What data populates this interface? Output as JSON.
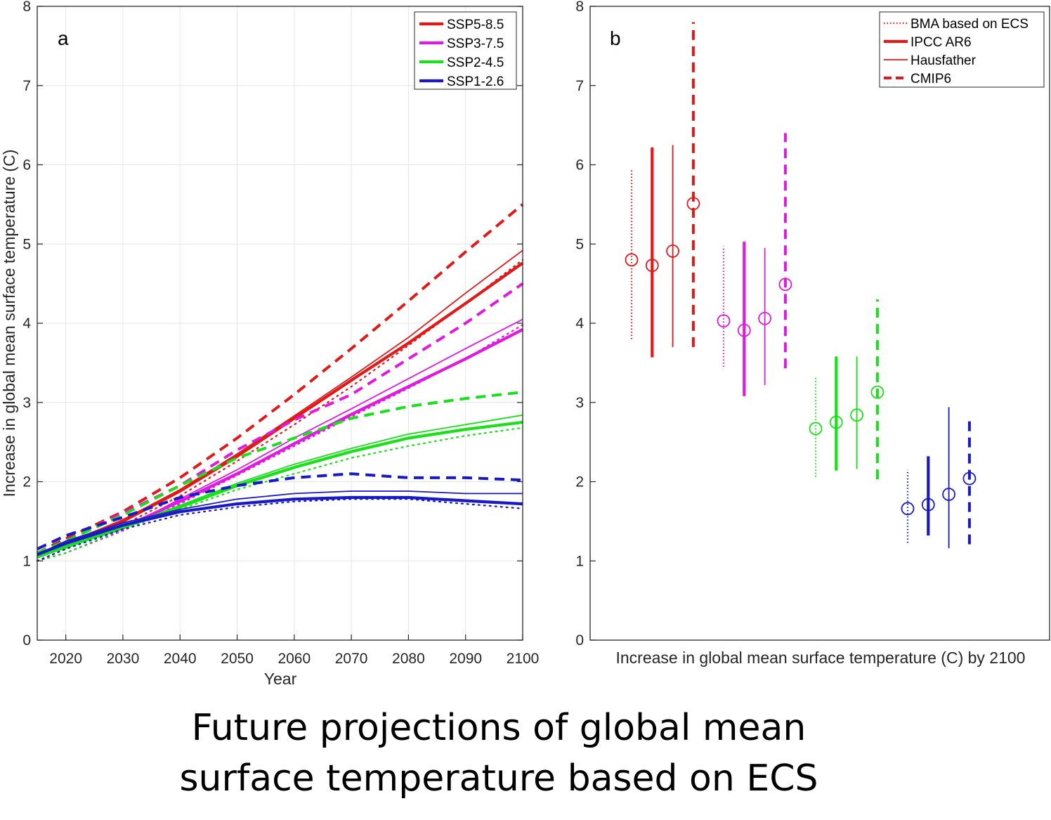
{
  "caption": {
    "line1": "Future projections of global mean",
    "line2": "surface temperature based on ECS"
  },
  "colors": {
    "SSP5-8.5": "#e01919",
    "SSP3-7.5": "#e019e0",
    "SSP2-4.5": "#19e019",
    "SSP1-2.6": "#1919c8"
  },
  "chart_data": [
    {
      "panel": "a",
      "type": "line",
      "xlabel": "Year",
      "ylabel": "Increase in global mean surface temperature (C)",
      "xlim": [
        2015,
        2100
      ],
      "ylim": [
        0,
        8
      ],
      "xticks": [
        2020,
        2030,
        2040,
        2050,
        2060,
        2070,
        2080,
        2090,
        2100
      ],
      "yticks": [
        0,
        1,
        2,
        3,
        4,
        5,
        6,
        7,
        8
      ],
      "grid": true,
      "legend_position": "top-right",
      "legend": [
        "SSP5-8.5",
        "SSP3-7.5",
        "SSP2-4.5",
        "SSP1-2.6"
      ],
      "line_styles": {
        "thick": "IPCC AR6",
        "thin": "Hausfather",
        "dotted": "BMA based on ECS",
        "dashed": "CMIP6"
      },
      "x": [
        2015,
        2020,
        2030,
        2040,
        2050,
        2060,
        2070,
        2080,
        2090,
        2100
      ],
      "series": [
        {
          "name": "SSP5-8.5",
          "style": "thick",
          "values": [
            1.08,
            1.22,
            1.5,
            1.88,
            2.32,
            2.8,
            3.28,
            3.75,
            4.25,
            4.76
          ]
        },
        {
          "name": "SSP5-8.5",
          "style": "thin",
          "values": [
            1.08,
            1.22,
            1.52,
            1.9,
            2.35,
            2.83,
            3.32,
            3.82,
            4.38,
            4.92
          ]
        },
        {
          "name": "SSP5-8.5",
          "style": "dotted",
          "values": [
            1.0,
            1.15,
            1.45,
            1.82,
            2.26,
            2.72,
            3.2,
            3.72,
            4.25,
            4.8
          ]
        },
        {
          "name": "SSP5-8.5",
          "style": "dashed",
          "values": [
            1.1,
            1.28,
            1.62,
            2.05,
            2.55,
            3.1,
            3.68,
            4.28,
            4.9,
            5.5
          ]
        },
        {
          "name": "SSP3-7.5",
          "style": "thick",
          "values": [
            1.05,
            1.18,
            1.42,
            1.75,
            2.1,
            2.48,
            2.85,
            3.2,
            3.55,
            3.92
          ]
        },
        {
          "name": "SSP3-7.5",
          "style": "thin",
          "values": [
            1.05,
            1.18,
            1.4,
            1.78,
            2.15,
            2.55,
            2.92,
            3.3,
            3.68,
            4.05
          ]
        },
        {
          "name": "SSP3-7.5",
          "style": "dotted",
          "values": [
            1.0,
            1.1,
            1.38,
            1.72,
            2.08,
            2.45,
            2.82,
            3.18,
            3.55,
            3.98
          ]
        },
        {
          "name": "SSP3-7.5",
          "style": "dashed",
          "values": [
            1.1,
            1.25,
            1.6,
            1.95,
            2.4,
            2.78,
            3.1,
            3.55,
            4.0,
            4.5
          ]
        },
        {
          "name": "SSP2-4.5",
          "style": "thick",
          "values": [
            1.05,
            1.18,
            1.42,
            1.68,
            1.95,
            2.18,
            2.38,
            2.55,
            2.66,
            2.75
          ]
        },
        {
          "name": "SSP2-4.5",
          "style": "thin",
          "values": [
            1.05,
            1.16,
            1.43,
            1.7,
            1.98,
            2.22,
            2.42,
            2.6,
            2.72,
            2.84
          ]
        },
        {
          "name": "SSP2-4.5",
          "style": "dotted",
          "values": [
            1.0,
            1.1,
            1.4,
            1.65,
            1.9,
            2.1,
            2.3,
            2.45,
            2.58,
            2.68
          ]
        },
        {
          "name": "SSP2-4.5",
          "style": "dashed",
          "values": [
            1.1,
            1.25,
            1.58,
            1.95,
            2.3,
            2.55,
            2.8,
            2.95,
            3.05,
            3.13
          ]
        },
        {
          "name": "SSP1-2.6",
          "style": "thick",
          "values": [
            1.08,
            1.22,
            1.45,
            1.62,
            1.72,
            1.78,
            1.8,
            1.8,
            1.76,
            1.72
          ]
        },
        {
          "name": "SSP1-2.6",
          "style": "thin",
          "values": [
            1.08,
            1.25,
            1.48,
            1.65,
            1.78,
            1.85,
            1.88,
            1.88,
            1.85,
            1.85
          ]
        },
        {
          "name": "SSP1-2.6",
          "style": "dotted",
          "values": [
            1.0,
            1.15,
            1.4,
            1.58,
            1.68,
            1.75,
            1.78,
            1.78,
            1.72,
            1.66
          ]
        },
        {
          "name": "SSP1-2.6",
          "style": "dashed",
          "values": [
            1.15,
            1.32,
            1.55,
            1.8,
            1.95,
            2.05,
            2.1,
            2.05,
            2.05,
            2.02
          ]
        }
      ]
    },
    {
      "panel": "b",
      "type": "scatter",
      "xlabel": "Increase in global mean surface temperature (C) by 2100",
      "ylim": [
        0,
        8
      ],
      "yticks": [
        0,
        1,
        2,
        3,
        4,
        5,
        6,
        7,
        8
      ],
      "grid": false,
      "legend_position": "top-right",
      "legend": [
        "BMA based on ECS",
        "IPCC AR6",
        "Hausfather",
        "CMIP6"
      ],
      "groups": [
        {
          "scenario": "SSP5-8.5",
          "entries": [
            {
              "method": "BMA based on ECS",
              "style": "dotted",
              "central": 4.8,
              "low": 3.8,
              "high": 5.95
            },
            {
              "method": "IPCC AR6",
              "style": "thick",
              "central": 4.73,
              "low": 3.57,
              "high": 6.22
            },
            {
              "method": "Hausfather",
              "style": "thin",
              "central": 4.91,
              "low": 3.7,
              "high": 6.25
            },
            {
              "method": "CMIP6",
              "style": "dashed",
              "central": 5.51,
              "low": 3.7,
              "high": 7.8
            }
          ]
        },
        {
          "scenario": "SSP3-7.5",
          "entries": [
            {
              "method": "BMA based on ECS",
              "style": "dotted",
              "central": 4.03,
              "low": 3.45,
              "high": 4.97
            },
            {
              "method": "IPCC AR6",
              "style": "thick",
              "central": 3.91,
              "low": 3.08,
              "high": 5.03
            },
            {
              "method": "Hausfather",
              "style": "thin",
              "central": 4.06,
              "low": 3.22,
              "high": 4.95
            },
            {
              "method": "CMIP6",
              "style": "dashed",
              "central": 4.49,
              "low": 3.43,
              "high": 6.4
            }
          ]
        },
        {
          "scenario": "SSP2-4.5",
          "entries": [
            {
              "method": "BMA based on ECS",
              "style": "dotted",
              "central": 2.67,
              "low": 2.06,
              "high": 3.33
            },
            {
              "method": "IPCC AR6",
              "style": "thick",
              "central": 2.75,
              "low": 2.14,
              "high": 3.58
            },
            {
              "method": "Hausfather",
              "style": "thin",
              "central": 2.84,
              "low": 2.16,
              "high": 3.58
            },
            {
              "method": "CMIP6",
              "style": "dashed",
              "central": 3.13,
              "low": 2.03,
              "high": 4.3
            }
          ]
        },
        {
          "scenario": "SSP1-2.6",
          "entries": [
            {
              "method": "BMA based on ECS",
              "style": "dotted",
              "central": 1.66,
              "low": 1.23,
              "high": 2.15
            },
            {
              "method": "IPCC AR6",
              "style": "thick",
              "central": 1.71,
              "low": 1.32,
              "high": 2.32
            },
            {
              "method": "Hausfather",
              "style": "thin",
              "central": 1.84,
              "low": 1.16,
              "high": 2.94
            },
            {
              "method": "CMIP6",
              "style": "dashed",
              "central": 2.04,
              "low": 1.21,
              "high": 2.8
            }
          ]
        }
      ]
    }
  ]
}
